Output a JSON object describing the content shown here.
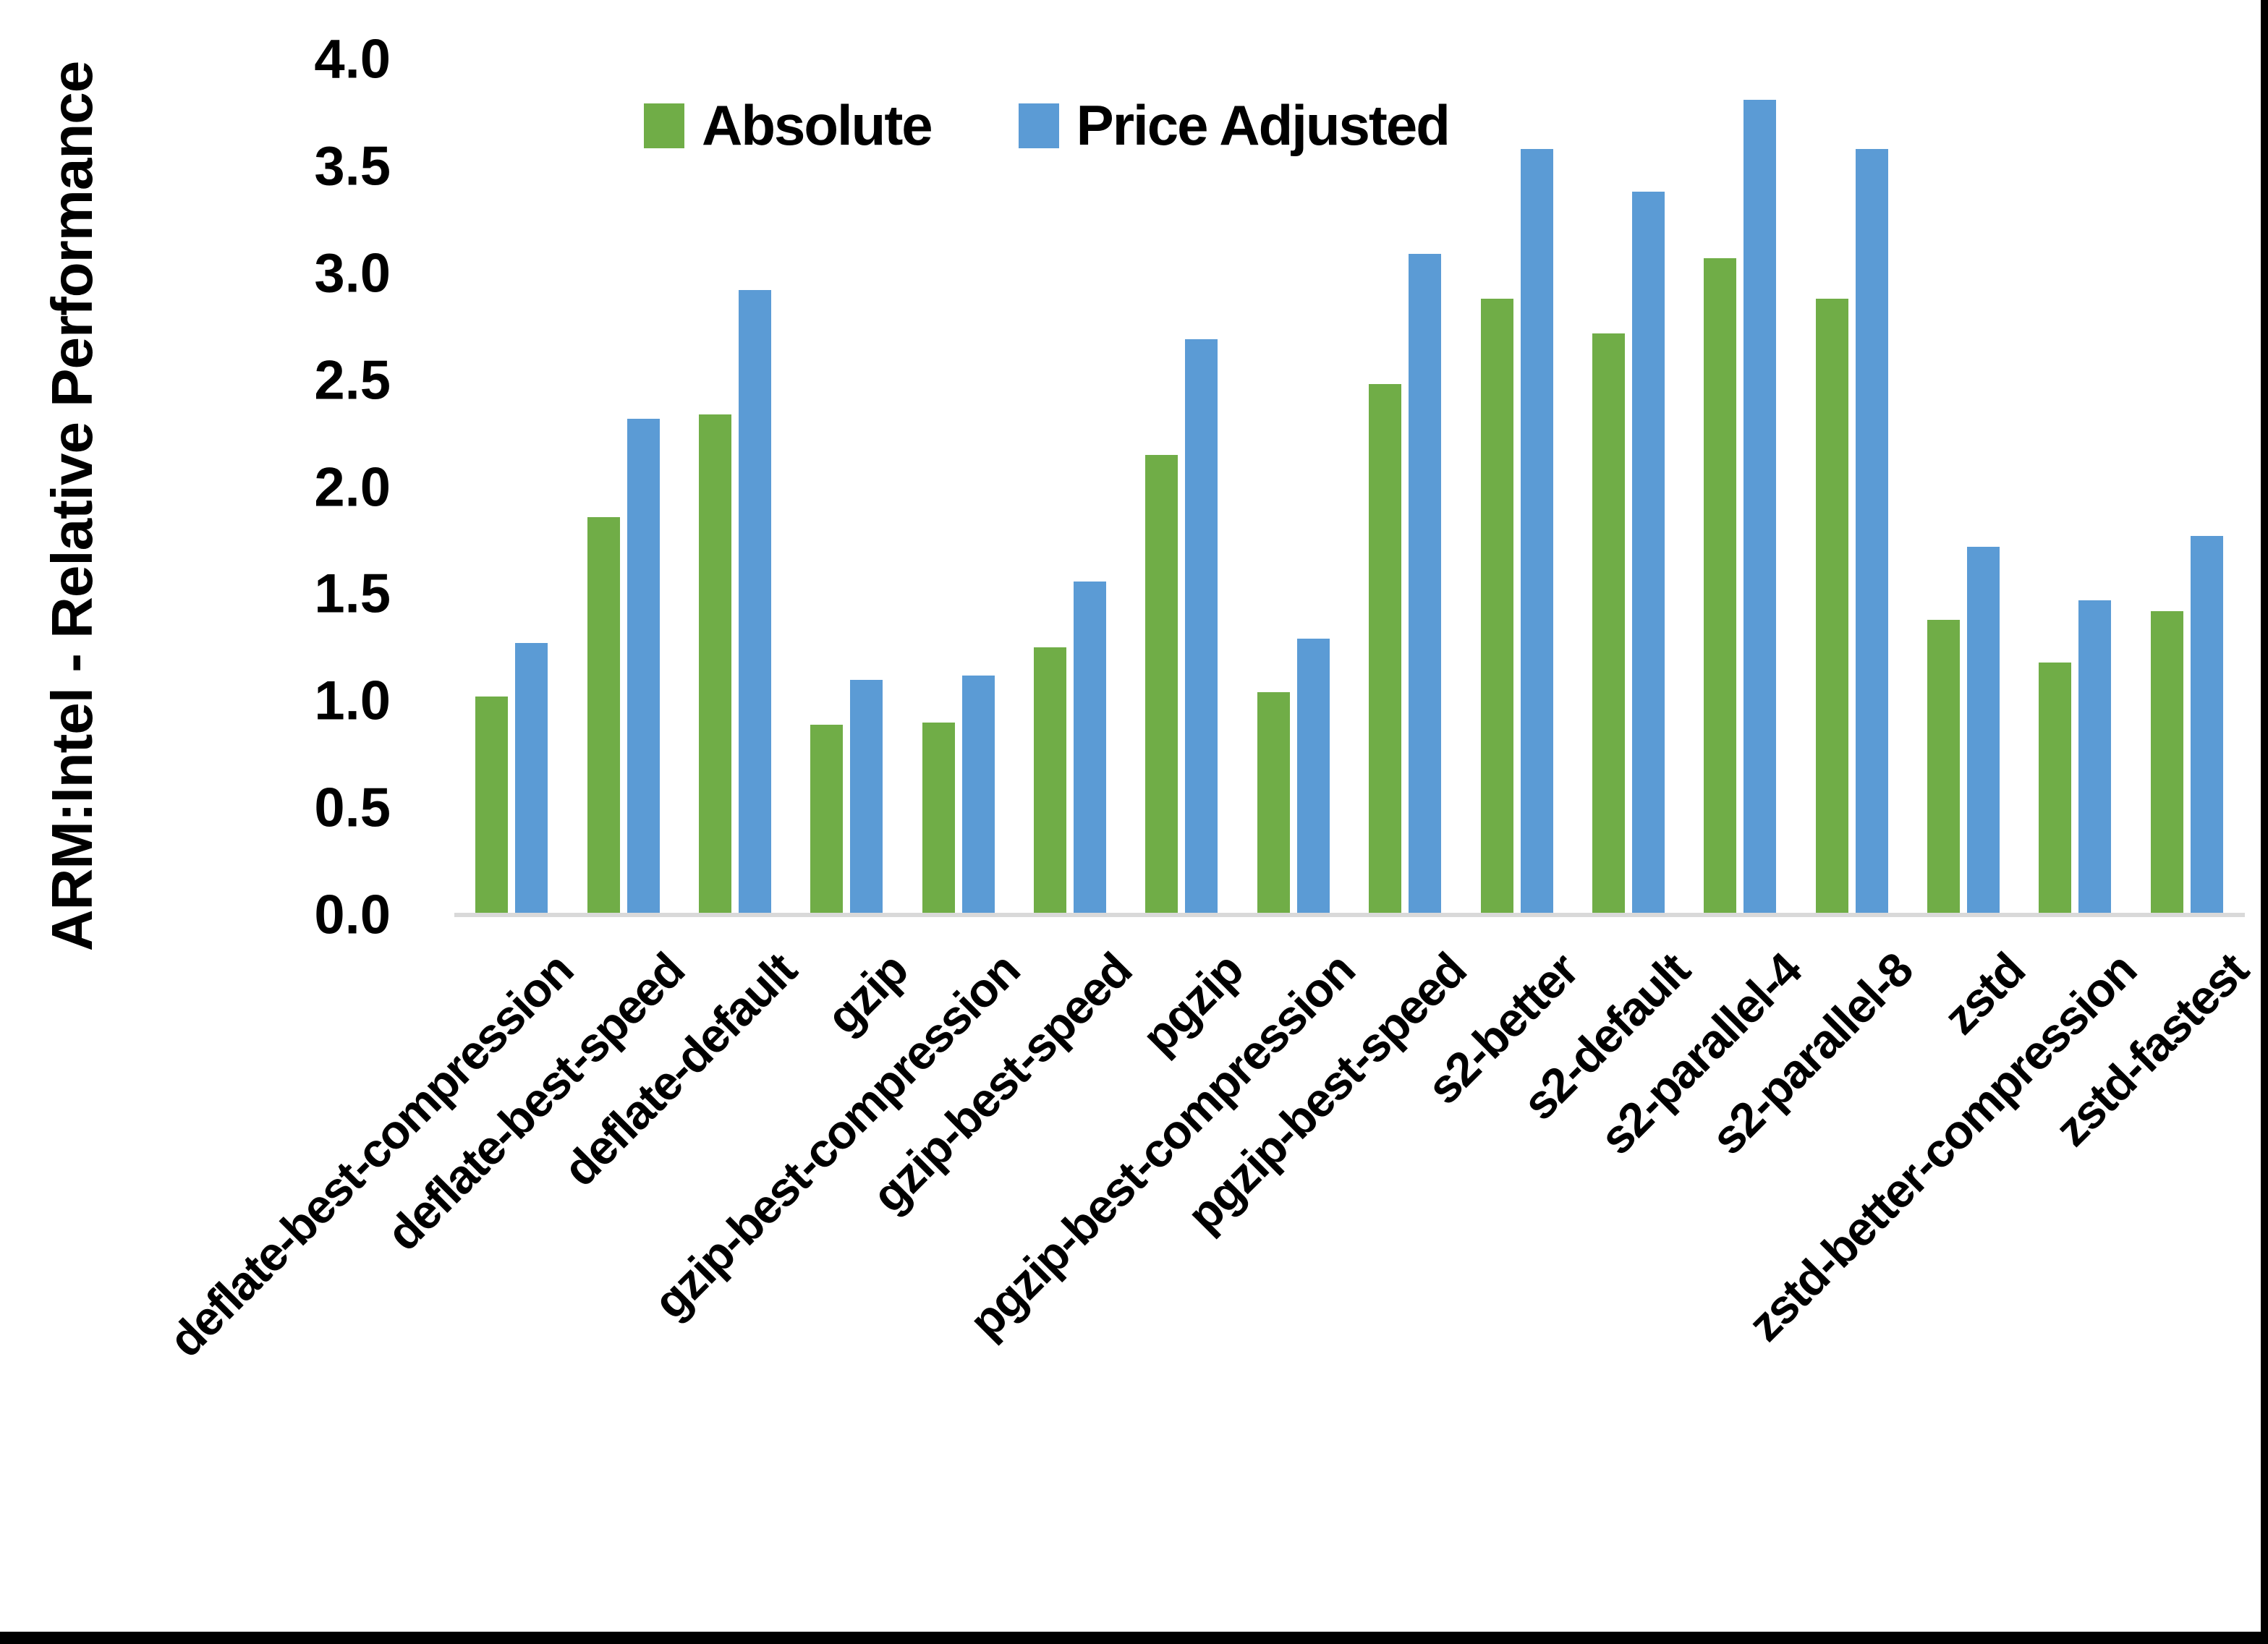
{
  "chart_data": {
    "type": "bar",
    "title": "",
    "xlabel": "",
    "ylabel": "ARM:Intel - Relative Performance",
    "ylim": [
      0.0,
      4.0
    ],
    "grid": false,
    "legend_position": "top-center",
    "axis_line_color": "#d9d9d9",
    "frame_border_color": "#000000",
    "yticks": [
      {
        "label": "4.0",
        "value": 4.0
      },
      {
        "label": "3.5",
        "value": 3.5
      },
      {
        "label": "3.0",
        "value": 3.0
      },
      {
        "label": "2.5",
        "value": 2.5
      },
      {
        "label": "2.0",
        "value": 2.0
      },
      {
        "label": "1.5",
        "value": 1.5
      },
      {
        "label": "1.0",
        "value": 1.0
      },
      {
        "label": "0.5",
        "value": 0.5
      },
      {
        "label": "0.0",
        "value": 0.0
      }
    ],
    "categories": [
      "deflate-best-compression",
      "deflate-best-speed",
      "deflate-default",
      "gzip",
      "gzip-best-compression",
      "gzip-best-speed",
      "pgzip",
      "pgzip-best-compression",
      "pgzip-best-speed",
      "s2-better",
      "s2-default",
      "s2-parallel-4",
      "s2-parallel-8",
      "zstd",
      "zstd-better-compression",
      "zstd-fastest"
    ],
    "series": [
      {
        "name": "Absolute",
        "color": "#70ad47",
        "values": [
          1.01,
          1.85,
          2.33,
          0.88,
          0.89,
          1.24,
          2.14,
          1.03,
          2.47,
          2.87,
          2.71,
          3.06,
          2.87,
          1.37,
          1.17,
          1.41
        ]
      },
      {
        "name": "Price Adjusted",
        "color": "#5b9bd5",
        "values": [
          1.26,
          2.31,
          2.91,
          1.09,
          1.11,
          1.55,
          2.68,
          1.28,
          3.08,
          3.57,
          3.37,
          3.8,
          3.57,
          1.71,
          1.46,
          1.76
        ]
      }
    ]
  }
}
